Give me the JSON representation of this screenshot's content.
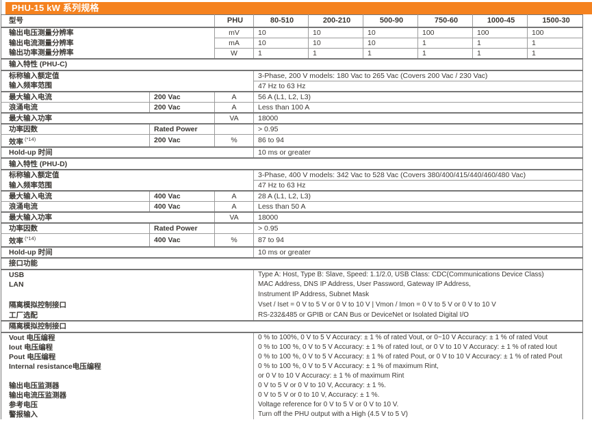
{
  "title": "PHU-15 kW 系列规格",
  "colors": {
    "accent": "#F5821F",
    "grid_thin": "#9a9a9a",
    "grid_thick": "#757575",
    "text": "#3A3733"
  },
  "model_header": {
    "label": "型号",
    "unit": "PHU",
    "models": [
      "80-510",
      "200-210",
      "500-90",
      "750-60",
      "1000-45",
      "1500-30"
    ]
  },
  "resolution_rows": [
    {
      "label": "输出电压测量分辨率",
      "unit": "mV",
      "values": [
        "10",
        "10",
        "10",
        "100",
        "100",
        "100"
      ]
    },
    {
      "label": "输出电流测量分辨率",
      "unit": "mA",
      "values": [
        "10",
        "10",
        "10",
        "1",
        "1",
        "1"
      ]
    },
    {
      "label": "输出功率测量分辨率",
      "unit": "W",
      "values": [
        "1",
        "1",
        "1",
        "1",
        "1",
        "1"
      ]
    }
  ],
  "sections": [
    {
      "kind": "spec",
      "title": "输入特性 (PHU-C)",
      "rows": [
        {
          "t": "wide",
          "label": "标称输入额定值",
          "value": "3-Phase, 200 V models: 180 Vac to 265 Vac (Covers 200 Vac / 230 Vac)",
          "sep": "thin",
          "lsep": "none"
        },
        {
          "t": "wide",
          "label": "输入频率范围",
          "value": "47 Hz to 63 Hz",
          "sep": "thick"
        },
        {
          "t": "cuv",
          "label": "最大输入电流",
          "cond": "200 Vac",
          "unit": "A",
          "value": "56 A (L1, L2, L3)",
          "sep": "thin"
        },
        {
          "t": "cuv",
          "label": "浪涌电流",
          "cond": "200 Vac",
          "unit": "A",
          "value": "Less than 100 A",
          "sep": "thick"
        },
        {
          "t": "uv",
          "label": "最大输入功率",
          "unit": "VA",
          "value": "18000",
          "sep": "thick"
        },
        {
          "t": "cuv",
          "label": "功率因数",
          "cond": "Rated Power",
          "unit": "",
          "value": "> 0.95",
          "sep": "thin"
        },
        {
          "t": "cuv",
          "label": "效率",
          "sup": "(*14)",
          "cond": "200 Vac",
          "unit": "%",
          "value": "86 to 94",
          "sep": "thick"
        },
        {
          "t": "wide",
          "label": "Hold-up 时间",
          "value": "10 ms or greater",
          "sep": "thick"
        }
      ]
    },
    {
      "kind": "spec",
      "title": "输入特性 (PHU-D)",
      "rows": [
        {
          "t": "wide",
          "label": "标称输入额定值",
          "value": "3-Phase, 400 V models: 342 Vac to 528 Vac (Covers 380/400/415/440/460/480 Vac)",
          "sep": "thin",
          "lsep": "none"
        },
        {
          "t": "wide",
          "label": "输入频率范围",
          "value": "47 Hz to 63 Hz",
          "sep": "thick"
        },
        {
          "t": "cuv",
          "label": "最大输入电流",
          "cond": "400 Vac",
          "unit": "A",
          "value": "28 A (L1, L2, L3)",
          "sep": "thin"
        },
        {
          "t": "cuv",
          "label": "浪涌电流",
          "cond": "400 Vac",
          "unit": "A",
          "value": "Less than 50 A",
          "sep": "thick"
        },
        {
          "t": "uv",
          "label": "最大输入功率",
          "unit": "VA",
          "value": "18000",
          "sep": "thick"
        },
        {
          "t": "cuv",
          "label": "功率因数",
          "cond": "Rated Power",
          "unit": "",
          "value": "> 0.95",
          "sep": "thin"
        },
        {
          "t": "cuv",
          "label": "效率",
          "sup": "(*14)",
          "cond": "400 Vac",
          "unit": "%",
          "value": "87 to 94",
          "sep": "thick"
        },
        {
          "t": "wide",
          "label": "Hold-up 时间",
          "value": "10 ms or greater",
          "sep": "thick"
        }
      ]
    },
    {
      "kind": "lines",
      "title": "接口功能",
      "line_height": "rh-line",
      "closed": true,
      "lines": [
        {
          "label": "USB",
          "value": "Type A: Host, Type B: Slave, Speed: 1.1/2.0, USB Class: CDC(Communications Device Class)"
        },
        {
          "label": "LAN",
          "value": "MAC Address, DNS IP Address, User Password, Gateway IP Address,"
        },
        {
          "label": "",
          "value": "Instrument IP Address, Subnet Mask"
        },
        {
          "label": "隔离模拟控制接口",
          "value": "Vset / Iset = 0 V to 5 V or 0 V to 10 V | Vmon / Imon = 0 V to 5 V or 0 V to 10 V"
        },
        {
          "label": "工厂选配",
          "value": "RS-232&485 or GPIB or CAN Bus or DeviceNet or Isolated Digital I/O"
        }
      ]
    },
    {
      "kind": "lines",
      "title": "隔离模拟控制接口",
      "line_height": "rh-line2",
      "closed": false,
      "lines": [
        {
          "label": "Vout 电压编程",
          "value": "0 % to 100%, 0 V to 5 V Accuracy: ± 1 % of rated Vout, or 0~10 V Accuracy: ± 1 % of rated Vout"
        },
        {
          "label": "Iout 电压编程",
          "value": "0 % to 100 %, 0 V to 5 V Accuracy: ± 1 % of rated Iout, or 0 V to 10 V Accuracy: ± 1 % of rated Iout"
        },
        {
          "label": "Pout 电压编程",
          "value": "0 % to 100 %, 0 V to 5 V Accuracy: ± 1 % of rated Pout, or 0 V to 10 V Accuracy: ± 1 % of rated Pout"
        },
        {
          "label": "Internal resistance电压编程",
          "value": "0 % to 100 %, 0 V to 5 V Accuracy: ± 1 % of maximum Rint,"
        },
        {
          "label": "",
          "value": "or 0 V to 10 V Accuracy: ± 1 % of maximum Rint"
        },
        {
          "label": "输出电压监测器",
          "value": "0 V to 5 V or 0 V to 10 V, Accuracy: ± 1 %."
        },
        {
          "label": "输出电流压监测器",
          "value": "0 V to 5 V or 0 to 10 V, Accuracy: ± 1 %."
        },
        {
          "label": "参考电压",
          "value": "Voltage reference for 0 V to 5 V or 0 V to 10 V."
        },
        {
          "label": "警报输入",
          "value": "Turn off the PHU output with a High (4.5 V to 5 V)"
        }
      ]
    }
  ]
}
